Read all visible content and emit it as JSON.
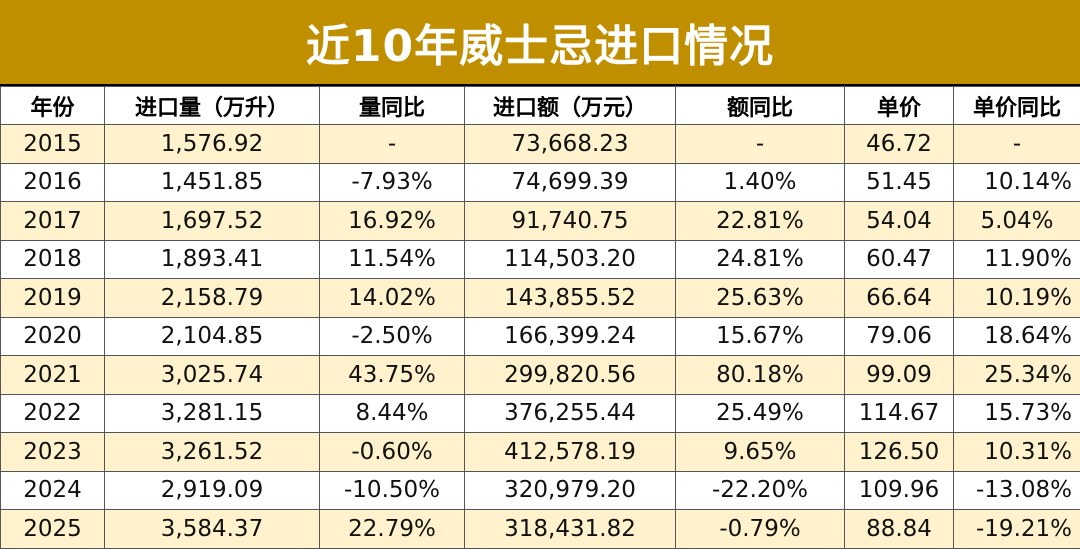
{
  "title": "近10年威士忌进口情况",
  "colors": {
    "title_bg": "#bf8f00",
    "stripe": "#fff2cc",
    "border": "#555555"
  },
  "headers": [
    "年份",
    "进口量（万升）",
    "量同比",
    "进口额（万元）",
    "额同比",
    "单价",
    "单价同比"
  ],
  "rows": [
    {
      "year": "2015",
      "volume": "1,576.92",
      "volume_yoy": "-",
      "amount": "73,668.23",
      "amount_yoy": "-",
      "unit_price": "46.72",
      "unit_price_yoy": "-"
    },
    {
      "year": "2016",
      "volume": "1,451.85",
      "volume_yoy": "-7.93%",
      "amount": "74,699.39",
      "amount_yoy": "1.40%",
      "unit_price": "51.45",
      "unit_price_yoy": "10.14%"
    },
    {
      "year": "2017",
      "volume": "1,697.52",
      "volume_yoy": "16.92%",
      "amount": "91,740.75",
      "amount_yoy": "22.81%",
      "unit_price": "54.04",
      "unit_price_yoy": "5.04%"
    },
    {
      "year": "2018",
      "volume": "1,893.41",
      "volume_yoy": "11.54%",
      "amount": "114,503.20",
      "amount_yoy": "24.81%",
      "unit_price": "60.47",
      "unit_price_yoy": "11.90%"
    },
    {
      "year": "2019",
      "volume": "2,158.79",
      "volume_yoy": "14.02%",
      "amount": "143,855.52",
      "amount_yoy": "25.63%",
      "unit_price": "66.64",
      "unit_price_yoy": "10.19%"
    },
    {
      "year": "2020",
      "volume": "2,104.85",
      "volume_yoy": "-2.50%",
      "amount": "166,399.24",
      "amount_yoy": "15.67%",
      "unit_price": "79.06",
      "unit_price_yoy": "18.64%"
    },
    {
      "year": "2021",
      "volume": "3,025.74",
      "volume_yoy": "43.75%",
      "amount": "299,820.56",
      "amount_yoy": "80.18%",
      "unit_price": "99.09",
      "unit_price_yoy": "25.34%"
    },
    {
      "year": "2022",
      "volume": "3,281.15",
      "volume_yoy": "8.44%",
      "amount": "376,255.44",
      "amount_yoy": "25.49%",
      "unit_price": "114.67",
      "unit_price_yoy": "15.73%"
    },
    {
      "year": "2023",
      "volume": "3,261.52",
      "volume_yoy": "-0.60%",
      "amount": "412,578.19",
      "amount_yoy": "9.65%",
      "unit_price": "126.50",
      "unit_price_yoy": "10.31%"
    },
    {
      "year": "2024",
      "volume": "2,919.09",
      "volume_yoy": "-10.50%",
      "amount": "320,979.20",
      "amount_yoy": "-22.20%",
      "unit_price": "109.96",
      "unit_price_yoy": "-13.08%"
    },
    {
      "year": "2025",
      "volume": "3,584.37",
      "volume_yoy": "22.79%",
      "amount": "318,431.82",
      "amount_yoy": "-0.79%",
      "unit_price": "88.84",
      "unit_price_yoy": "-19.21%"
    }
  ]
}
